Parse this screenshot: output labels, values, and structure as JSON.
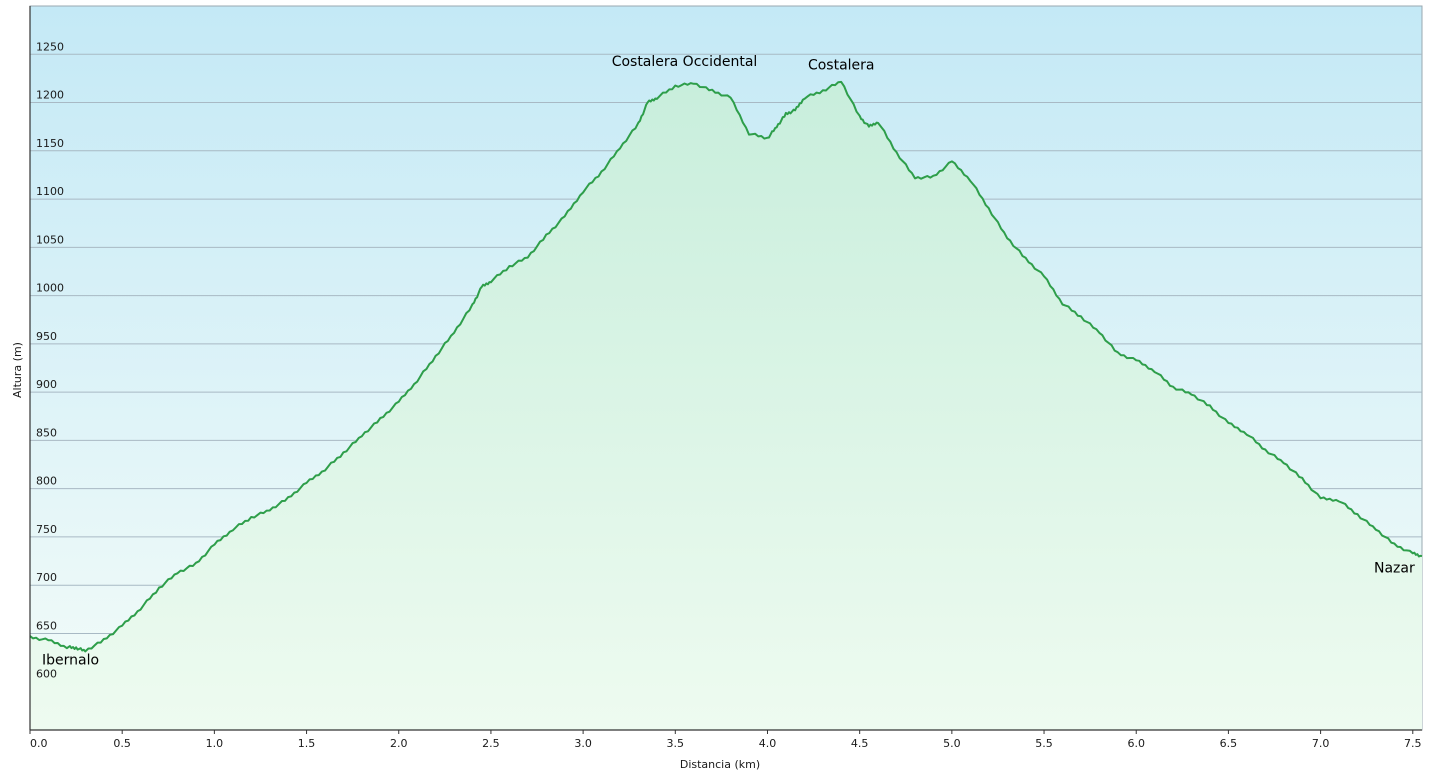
{
  "chart_data": {
    "type": "area",
    "title": "",
    "xlabel": "Distancia  (km)",
    "ylabel": "Altura (m)",
    "xlim": [
      0,
      7.55
    ],
    "ylim": [
      550,
      1300
    ],
    "x_ticks": [
      "0.0",
      "0.5",
      "1.0",
      "1.5",
      "2.0",
      "2.5",
      "3.0",
      "3.5",
      "4.0",
      "4.5",
      "5.0",
      "5.5",
      "6.0",
      "6.5",
      "7.0",
      "7.5"
    ],
    "y_ticks": [
      "600",
      "650",
      "700",
      "750",
      "800",
      "850",
      "900",
      "950",
      "1000",
      "1050",
      "1100",
      "1150",
      "1200",
      "1250"
    ],
    "grid": true,
    "colors": {
      "line": "#2e9e4a",
      "fill_top": "#c8eedc",
      "fill_bottom": "#eefbf0",
      "bg_top": "#c4e9f6",
      "bg_bottom": "#f4fcf9"
    },
    "series": [
      {
        "x": [
          0.0,
          0.1,
          0.2,
          0.25,
          0.3,
          0.4,
          0.5,
          0.6,
          0.7,
          0.8,
          0.9,
          1.0,
          1.1,
          1.2,
          1.3,
          1.4,
          1.5,
          1.6,
          1.7,
          1.8,
          1.9,
          2.0,
          2.1,
          2.2,
          2.3,
          2.4,
          2.45,
          2.5,
          2.6,
          2.7,
          2.8,
          2.9,
          3.0,
          3.1,
          3.2,
          3.3,
          3.35,
          3.4,
          3.5,
          3.6,
          3.7,
          3.8,
          3.9,
          4.0,
          4.05,
          4.1,
          4.15,
          4.2,
          4.3,
          4.4,
          4.5,
          4.55,
          4.6,
          4.7,
          4.8,
          4.9,
          5.0,
          5.1,
          5.2,
          5.3,
          5.4,
          5.5,
          5.6,
          5.7,
          5.8,
          5.9,
          6.0,
          6.1,
          6.2,
          6.3,
          6.4,
          6.5,
          6.6,
          6.7,
          6.8,
          6.9,
          7.0,
          7.1,
          7.2,
          7.3,
          7.4,
          7.5,
          7.55
        ],
        "y": [
          646,
          643,
          636,
          635,
          632,
          643,
          658,
          676,
          697,
          713,
          722,
          742,
          758,
          770,
          778,
          790,
          806,
          820,
          837,
          855,
          872,
          890,
          912,
          937,
          962,
          990,
          1009,
          1015,
          1030,
          1040,
          1062,
          1082,
          1108,
          1128,
          1153,
          1178,
          1200,
          1205,
          1217,
          1220,
          1212,
          1205,
          1168,
          1163,
          1175,
          1188,
          1192,
          1205,
          1212,
          1222,
          1185,
          1175,
          1180,
          1148,
          1122,
          1123,
          1139,
          1120,
          1090,
          1060,
          1038,
          1020,
          992,
          978,
          962,
          940,
          933,
          922,
          905,
          898,
          885,
          868,
          857,
          840,
          827,
          810,
          790,
          788,
          773,
          758,
          742,
          733,
          730
        ]
      }
    ],
    "annotations": [
      {
        "text": "Ibernalo",
        "x": 0.22,
        "y": 618
      },
      {
        "text": "Costalera Occidental",
        "x": 3.55,
        "y": 1238
      },
      {
        "text": "Costalera",
        "x": 4.4,
        "y": 1234
      },
      {
        "text": "Nazar",
        "x": 7.4,
        "y": 713
      }
    ]
  }
}
